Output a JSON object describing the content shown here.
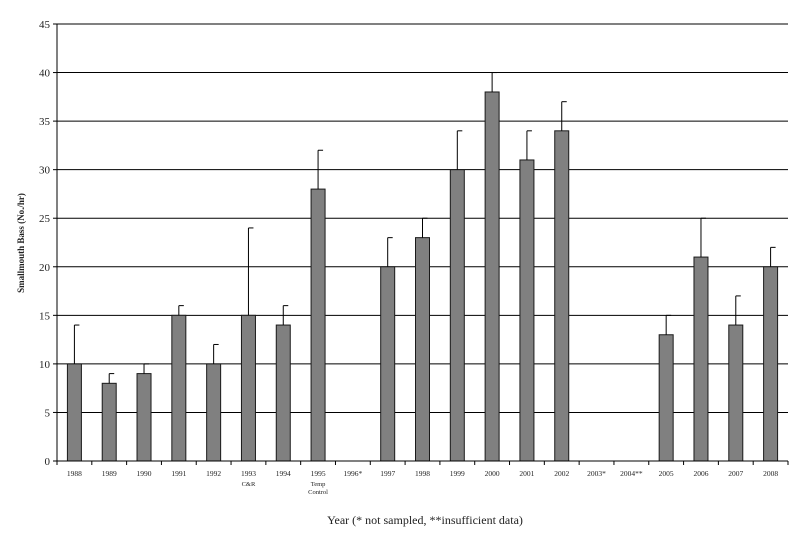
{
  "chart_data": {
    "type": "bar",
    "title": "",
    "xlabel": "Year (* not sampled, **insufficient data)",
    "ylabel": "Smallmouth Bass (No./hr)",
    "ylim": [
      0,
      45
    ],
    "yticks": [
      0,
      5,
      10,
      15,
      20,
      25,
      30,
      35,
      40,
      45
    ],
    "grid": "horizontal",
    "categories": [
      "1988",
      "1989",
      "1990",
      "1991",
      "1992",
      "1993",
      "1994",
      "1995",
      "1996*",
      "1997",
      "1998",
      "1999",
      "2000",
      "2001",
      "2002",
      "2003*",
      "2004**",
      "2005",
      "2006",
      "2007",
      "2008"
    ],
    "category_sublabels": {
      "5": "C&R",
      "7": "Temp Control"
    },
    "values": [
      10,
      8,
      9,
      15,
      10,
      15,
      14,
      28,
      null,
      20,
      23,
      30,
      38,
      31,
      34,
      null,
      null,
      13,
      21,
      14,
      20
    ],
    "error_upper": [
      14,
      9,
      10,
      16,
      12,
      24,
      16,
      32,
      null,
      23,
      25,
      34,
      40,
      34,
      37,
      null,
      null,
      15,
      25,
      17,
      22
    ],
    "colors": {
      "bar": "#808080",
      "bar_edge": "#1a1a1a",
      "grid": "#000000"
    }
  }
}
